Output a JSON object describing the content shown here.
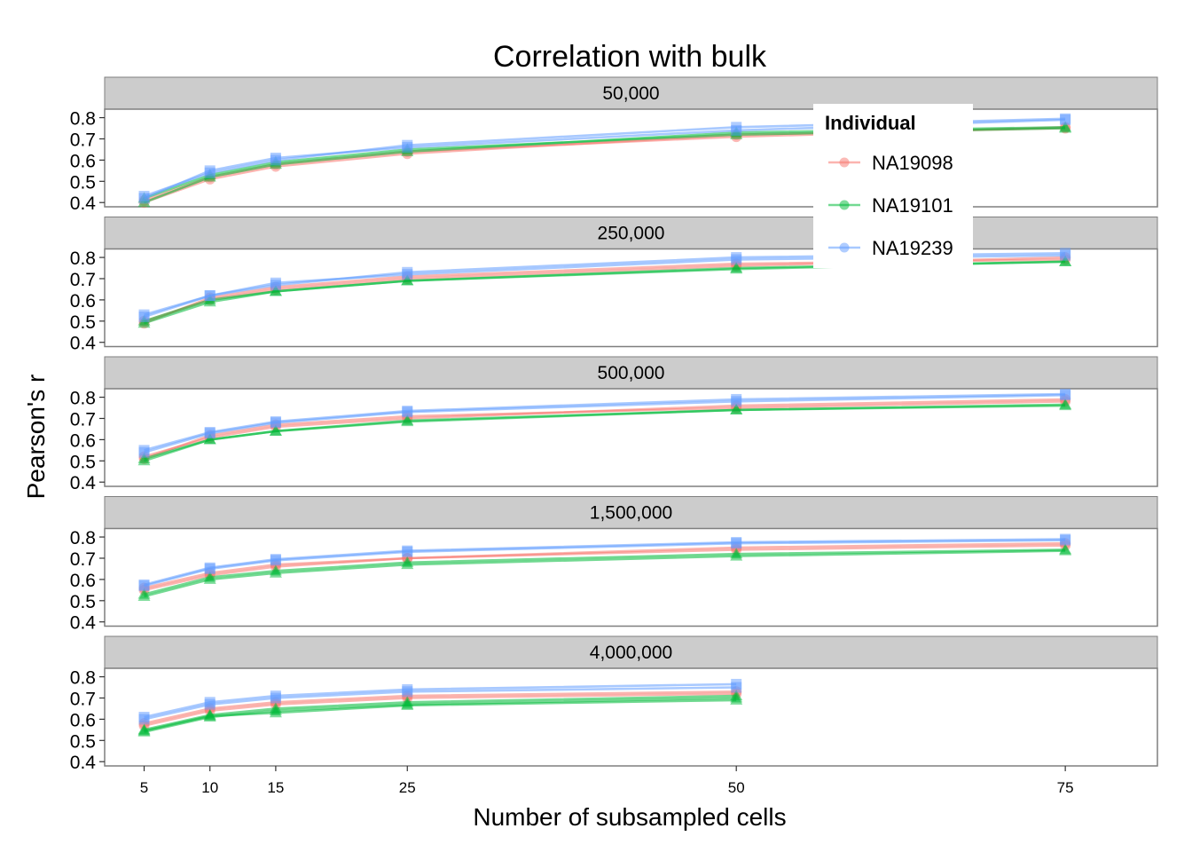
{
  "chart_data": {
    "type": "line",
    "title": "Correlation with bulk",
    "xlabel": "Number of subsampled cells",
    "ylabel": "Pearson's r",
    "x": [
      5,
      10,
      15,
      25,
      50,
      75
    ],
    "xlim": [
      2,
      82
    ],
    "ylim": [
      0.38,
      0.84
    ],
    "yticks": [
      0.4,
      0.5,
      0.6,
      0.7,
      0.8
    ],
    "ytick_labels": [
      "0.4",
      "0.5",
      "0.6",
      "0.7",
      "0.8"
    ],
    "xticks": [
      5,
      10,
      15,
      25,
      50,
      75
    ],
    "xtick_labels": [
      "5",
      "10",
      "15",
      "25",
      "50",
      "75"
    ],
    "grid": false,
    "legend": {
      "title": "Individual",
      "placement": "top-right",
      "entries": [
        {
          "name": "NA19098",
          "color": "#f8766d"
        },
        {
          "name": "NA19101",
          "color": "#00ba38"
        },
        {
          "name": "NA19239",
          "color": "#619cff"
        }
      ]
    },
    "facets": [
      {
        "label": "50,000",
        "series": [
          {
            "name": "NA19098",
            "values": [
              0.41,
              0.52,
              0.58,
              0.64,
              0.71,
              0.755
            ]
          },
          {
            "name": "NA19098",
            "values": [
              0.4,
              0.51,
              0.57,
              0.63,
              0.72,
              0.75
            ]
          },
          {
            "name": "NA19101",
            "values": [
              0.42,
              0.53,
              0.59,
              0.65,
              0.72,
              0.75
            ]
          },
          {
            "name": "NA19101",
            "values": [
              0.4,
              0.52,
              0.58,
              0.64,
              0.73,
              0.755
            ]
          },
          {
            "name": "NA19239",
            "values": [
              0.43,
              0.54,
              0.6,
              0.67,
              0.755,
              0.795
            ]
          },
          {
            "name": "NA19239",
            "values": [
              0.42,
              0.55,
              0.61,
              0.66,
              0.74,
              0.79
            ]
          }
        ]
      },
      {
        "label": "250,000",
        "series": [
          {
            "name": "NA19098",
            "values": [
              0.5,
              0.6,
              0.65,
              0.7,
              0.76,
              0.8
            ]
          },
          {
            "name": "NA19098",
            "values": [
              0.49,
              0.61,
              0.66,
              0.71,
              0.77,
              0.79
            ]
          },
          {
            "name": "NA19101",
            "values": [
              0.49,
              0.59,
              0.64,
              0.69,
              0.745,
              0.78
            ]
          },
          {
            "name": "NA19101",
            "values": [
              0.5,
              0.6,
              0.64,
              0.69,
              0.75,
              0.78
            ]
          },
          {
            "name": "NA19239",
            "values": [
              0.53,
              0.62,
              0.67,
              0.73,
              0.8,
              0.82
            ]
          },
          {
            "name": "NA19239",
            "values": [
              0.52,
              0.62,
              0.68,
              0.72,
              0.79,
              0.81
            ]
          }
        ]
      },
      {
        "label": "500,000",
        "series": [
          {
            "name": "NA19098",
            "values": [
              0.52,
              0.61,
              0.66,
              0.7,
              0.76,
              0.79
            ]
          },
          {
            "name": "NA19098",
            "values": [
              0.51,
              0.62,
              0.67,
              0.71,
              0.75,
              0.78
            ]
          },
          {
            "name": "NA19101",
            "values": [
              0.5,
              0.6,
              0.64,
              0.69,
              0.74,
              0.76
            ]
          },
          {
            "name": "NA19101",
            "values": [
              0.51,
              0.6,
              0.64,
              0.685,
              0.74,
              0.765
            ]
          },
          {
            "name": "NA19239",
            "values": [
              0.55,
              0.635,
              0.685,
              0.735,
              0.79,
              0.815
            ]
          },
          {
            "name": "NA19239",
            "values": [
              0.54,
              0.63,
              0.68,
              0.73,
              0.78,
              0.81
            ]
          }
        ]
      },
      {
        "label": "1,500,000",
        "series": [
          {
            "name": "NA19098",
            "values": [
              0.56,
              0.63,
              0.67,
              0.7,
              0.75,
              0.77
            ]
          },
          {
            "name": "NA19098",
            "values": [
              0.55,
              0.62,
              0.66,
              0.7,
              0.74,
              0.76
            ]
          },
          {
            "name": "NA19101",
            "values": [
              0.52,
              0.6,
              0.63,
              0.67,
              0.71,
              0.735
            ]
          },
          {
            "name": "NA19101",
            "values": [
              0.53,
              0.61,
              0.64,
              0.68,
              0.72,
              0.74
            ]
          },
          {
            "name": "NA19239",
            "values": [
              0.575,
              0.655,
              0.695,
              0.735,
              0.775,
              0.79
            ]
          },
          {
            "name": "NA19239",
            "values": [
              0.57,
              0.65,
              0.69,
              0.73,
              0.77,
              0.785
            ]
          }
        ]
      },
      {
        "label": "4,000,000",
        "series": [
          {
            "name": "NA19098",
            "values": [
              0.58,
              0.65,
              0.68,
              0.71,
              0.73
            ]
          },
          {
            "name": "NA19098",
            "values": [
              0.57,
              0.64,
              0.67,
              0.7,
              0.72
            ]
          },
          {
            "name": "NA19101",
            "values": [
              0.54,
              0.61,
              0.64,
              0.67,
              0.7
            ]
          },
          {
            "name": "NA19101",
            "values": [
              0.55,
              0.62,
              0.65,
              0.68,
              0.71
            ]
          },
          {
            "name": "NA19101",
            "values": [
              0.545,
              0.615,
              0.63,
              0.665,
              0.69
            ]
          },
          {
            "name": "NA19239",
            "values": [
              0.61,
              0.68,
              0.71,
              0.74,
              0.765
            ]
          },
          {
            "name": "NA19239",
            "values": [
              0.6,
              0.67,
              0.7,
              0.73,
              0.75
            ]
          }
        ]
      }
    ]
  }
}
